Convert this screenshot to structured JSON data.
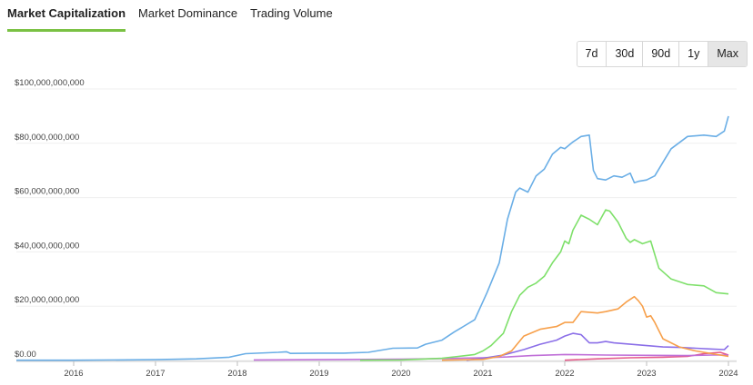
{
  "tabs": [
    {
      "label": "Market Capitalization",
      "active": true
    },
    {
      "label": "Market Dominance",
      "active": false
    },
    {
      "label": "Trading Volume",
      "active": false
    }
  ],
  "ranges": [
    {
      "label": "7d",
      "active": false
    },
    {
      "label": "30d",
      "active": false
    },
    {
      "label": "90d",
      "active": false
    },
    {
      "label": "1y",
      "active": false
    },
    {
      "label": "Max",
      "active": true
    }
  ],
  "chart_data": {
    "type": "line",
    "title": "",
    "xlabel": "",
    "ylabel": "",
    "xlim": [
      2015.3,
      2024.1
    ],
    "ylim": [
      0,
      100000000000
    ],
    "y_ticks": [
      "$0.00",
      "$20,000,000,000",
      "$40,000,000,000",
      "$60,000,000,000",
      "$80,000,000,000",
      "$100,000,000,000"
    ],
    "x_ticks": [
      "2016",
      "2017",
      "2018",
      "2019",
      "2020",
      "2021",
      "2022",
      "2023",
      "2024"
    ],
    "grid": true,
    "legend": "none",
    "series": [
      {
        "color": "#6aaee6",
        "x": [
          2015.3,
          2016.0,
          2017.0,
          2017.5,
          2017.9,
          2018.1,
          2018.5,
          2018.6,
          2018.65,
          2019.0,
          2019.3,
          2019.6,
          2019.9,
          2020.2,
          2020.3,
          2020.5,
          2020.65,
          2020.9,
          2021.05,
          2021.2,
          2021.3,
          2021.4,
          2021.45,
          2021.55,
          2021.65,
          2021.75,
          2021.85,
          2021.95,
          2022.0,
          2022.1,
          2022.2,
          2022.3,
          2022.35,
          2022.4,
          2022.5,
          2022.6,
          2022.7,
          2022.8,
          2022.85,
          2022.9,
          2023.0,
          2023.1,
          2023.2,
          2023.3,
          2023.5,
          2023.7,
          2023.85,
          2023.95,
          2024.0
        ],
        "values": [
          0.1,
          0.1,
          0.3,
          0.6,
          1.2,
          2.5,
          3.0,
          3.2,
          2.6,
          2.7,
          2.7,
          3.0,
          4.5,
          4.6,
          6.0,
          7.5,
          10.5,
          15.0,
          25.0,
          36.0,
          52.0,
          62.0,
          63.5,
          62.0,
          68.0,
          70.5,
          76.0,
          78.5,
          78.0,
          80.5,
          82.5,
          83.0,
          70.0,
          67.0,
          66.5,
          68.0,
          67.5,
          69.0,
          65.5,
          66.0,
          66.5,
          68.0,
          73.0,
          78.0,
          82.5,
          83.0,
          82.5,
          84.5,
          90.0
        ]
      },
      {
        "color": "#7ee06a",
        "x": [
          2019.5,
          2020.0,
          2020.5,
          2020.7,
          2020.9,
          2021.0,
          2021.1,
          2021.25,
          2021.35,
          2021.45,
          2021.55,
          2021.65,
          2021.75,
          2021.85,
          2021.95,
          2022.0,
          2022.05,
          2022.1,
          2022.2,
          2022.3,
          2022.4,
          2022.5,
          2022.55,
          2022.65,
          2022.75,
          2022.8,
          2022.85,
          2022.95,
          2023.05,
          2023.15,
          2023.3,
          2023.5,
          2023.7,
          2023.85,
          2024.0
        ],
        "values": [
          0.1,
          0.2,
          0.8,
          1.5,
          2.2,
          3.5,
          5.5,
          10.0,
          18.0,
          24.0,
          27.0,
          28.5,
          31.0,
          36.0,
          40.0,
          44.0,
          43.0,
          48.0,
          53.5,
          52.0,
          50.0,
          55.5,
          55.0,
          51.0,
          45.0,
          43.5,
          44.5,
          43.0,
          44.0,
          34.0,
          30.0,
          28.0,
          27.5,
          25.0,
          24.5
        ]
      },
      {
        "color": "#f7a04b",
        "x": [
          2020.5,
          2021.0,
          2021.2,
          2021.35,
          2021.5,
          2021.7,
          2021.9,
          2022.0,
          2022.1,
          2022.2,
          2022.4,
          2022.5,
          2022.65,
          2022.75,
          2022.85,
          2022.9,
          2022.95,
          2023.0,
          2023.05,
          2023.1,
          2023.2,
          2023.4,
          2023.6,
          2023.8,
          2024.0
        ],
        "values": [
          0.1,
          0.4,
          1.5,
          3.5,
          9.0,
          11.5,
          12.5,
          14.0,
          14.0,
          18.0,
          17.5,
          18.0,
          19.0,
          21.5,
          23.5,
          22.0,
          20.0,
          16.0,
          16.5,
          14.0,
          8.0,
          5.0,
          3.5,
          2.5,
          1.5
        ]
      },
      {
        "color": "#8b6fe8",
        "x": [
          2020.8,
          2021.0,
          2021.25,
          2021.5,
          2021.7,
          2021.9,
          2022.0,
          2022.1,
          2022.2,
          2022.3,
          2022.4,
          2022.5,
          2022.6,
          2022.8,
          2023.0,
          2023.2,
          2023.4,
          2023.6,
          2023.8,
          2023.95,
          2024.0
        ],
        "values": [
          0.1,
          0.8,
          2.0,
          4.0,
          6.0,
          7.5,
          9.0,
          10.0,
          9.5,
          6.5,
          6.5,
          7.0,
          6.5,
          6.0,
          5.5,
          5.0,
          4.8,
          4.5,
          4.2,
          4.0,
          5.5
        ]
      },
      {
        "color": "#c070d8",
        "x": [
          2018.2,
          2019.0,
          2020.0,
          2020.5,
          2021.0,
          2021.3,
          2021.6,
          2022.0,
          2022.5,
          2023.0,
          2023.5,
          2023.8,
          2024.0
        ],
        "values": [
          0.2,
          0.3,
          0.5,
          0.7,
          1.0,
          1.3,
          1.8,
          2.2,
          2.0,
          1.9,
          1.8,
          2.0,
          2.0
        ]
      },
      {
        "color": "#e55a8a",
        "x": [
          2022.0,
          2022.4,
          2022.8,
          2023.2,
          2023.5,
          2023.7,
          2023.9,
          2024.0
        ],
        "values": [
          0.1,
          0.6,
          1.0,
          1.2,
          1.5,
          2.5,
          3.0,
          2.0
        ]
      }
    ]
  }
}
